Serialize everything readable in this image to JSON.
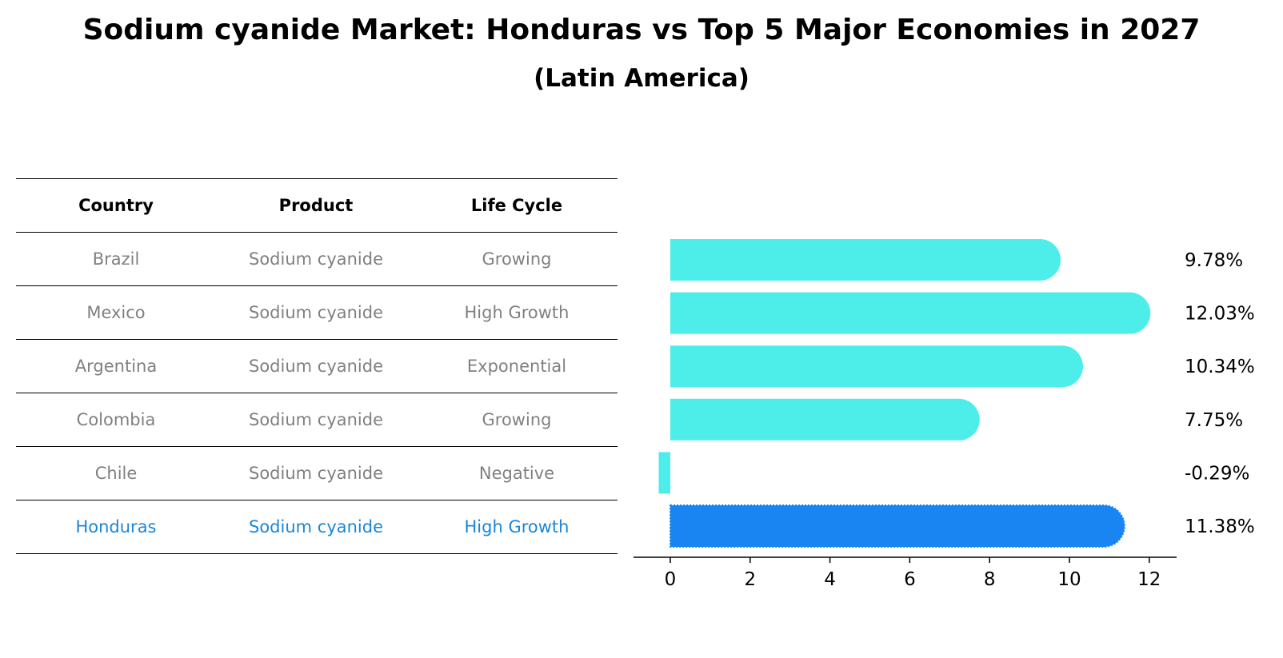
{
  "title": "Sodium cyanide Market: Honduras vs Top 5 Major Economies in 2027",
  "subtitle": "(Latin America)",
  "table": {
    "headers": [
      "Country",
      "Product",
      "Life Cycle"
    ],
    "rows": [
      [
        "Brazil",
        "Sodium cyanide",
        "Growing"
      ],
      [
        "Mexico",
        "Sodium cyanide",
        "High Growth"
      ],
      [
        "Argentina",
        "Sodium cyanide",
        "Exponential"
      ],
      [
        "Colombia",
        "Sodium cyanide",
        "Growing"
      ],
      [
        "Chile",
        "Sodium cyanide",
        "Negative"
      ],
      [
        "Honduras",
        "Sodium cyanide",
        "High Growth"
      ]
    ]
  },
  "colors": {
    "bar": "#4deeea",
    "highlight": "#1985f3",
    "highlight_text": "#1b86d8",
    "muted_text": "#808080"
  },
  "chart_data": {
    "type": "bar",
    "orientation": "horizontal",
    "categories": [
      "Brazil",
      "Mexico",
      "Argentina",
      "Colombia",
      "Chile",
      "Honduras"
    ],
    "values": [
      9.78,
      12.03,
      10.34,
      7.75,
      -0.29,
      11.38
    ],
    "value_labels": [
      "9.78%",
      "12.03%",
      "10.34%",
      "7.75%",
      "-0.29%",
      "11.38%"
    ],
    "highlight_index": 5,
    "xlim": [
      -0.95,
      12.6
    ],
    "xticks": [
      0,
      2,
      4,
      6,
      8,
      10,
      12
    ],
    "grid": false
  }
}
